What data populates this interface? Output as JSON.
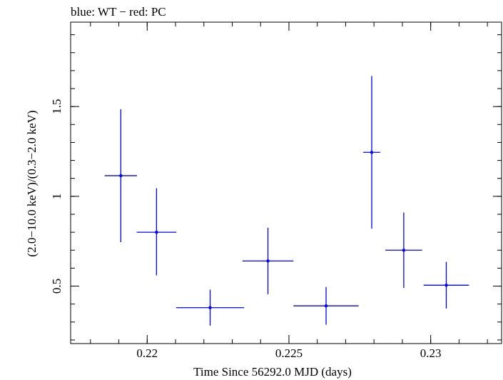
{
  "chart_data": {
    "type": "scatter",
    "title": "blue: WT − red: PC",
    "xlabel": "Time Since 56292.0 MJD (days)",
    "ylabel": "(2.0−10.0 keV)/(0.3−2.0 keV)",
    "xlim": [
      0.2173,
      0.2325
    ],
    "ylim": [
      0.18,
      1.97
    ],
    "x_ticks": [
      {
        "value": 0.22,
        "label": "0.22"
      },
      {
        "value": 0.225,
        "label": "0.225"
      },
      {
        "value": 0.23,
        "label": "0.23"
      }
    ],
    "y_ticks": [
      {
        "value": 0.5,
        "label": "0.5"
      },
      {
        "value": 1.0,
        "label": "1"
      },
      {
        "value": 1.5,
        "label": "1.5"
      }
    ],
    "x_minor_step": 0.001,
    "y_minor_step": 0.1,
    "grid": false,
    "series": [
      {
        "color": "#0000ff",
        "points": [
          {
            "x": 0.21907,
            "y": 1.115,
            "xerr_low": 0.00057,
            "xerr_high": 0.00057,
            "yerr_low": 0.37,
            "yerr_high": 0.37
          },
          {
            "x": 0.22033,
            "y": 0.8,
            "xerr_low": 0.0007,
            "xerr_high": 0.0007,
            "yerr_low": 0.24,
            "yerr_high": 0.245
          },
          {
            "x": 0.22222,
            "y": 0.38,
            "xerr_low": 0.0012,
            "xerr_high": 0.0012,
            "yerr_low": 0.1,
            "yerr_high": 0.1
          },
          {
            "x": 0.22426,
            "y": 0.64,
            "xerr_low": 0.0009,
            "xerr_high": 0.0009,
            "yerr_low": 0.185,
            "yerr_high": 0.185
          },
          {
            "x": 0.22631,
            "y": 0.39,
            "xerr_low": 0.00115,
            "xerr_high": 0.00115,
            "yerr_low": 0.105,
            "yerr_high": 0.105
          },
          {
            "x": 0.22792,
            "y": 1.245,
            "xerr_low": 0.0003,
            "xerr_high": 0.0003,
            "yerr_low": 0.425,
            "yerr_high": 0.425
          },
          {
            "x": 0.22905,
            "y": 0.7,
            "xerr_low": 0.00065,
            "xerr_high": 0.00065,
            "yerr_low": 0.21,
            "yerr_high": 0.21
          },
          {
            "x": 0.23055,
            "y": 0.505,
            "xerr_low": 0.0008,
            "xerr_high": 0.0008,
            "yerr_low": 0.13,
            "yerr_high": 0.13
          }
        ]
      }
    ]
  }
}
